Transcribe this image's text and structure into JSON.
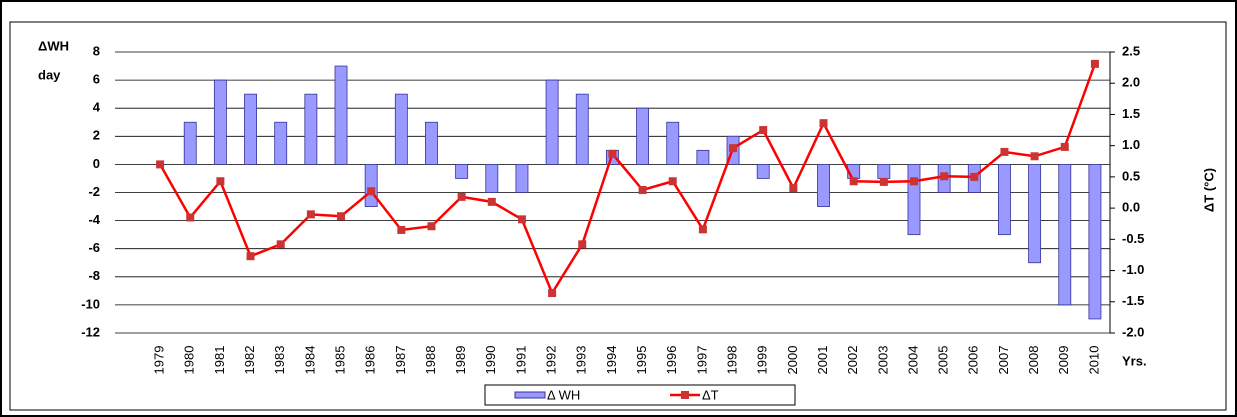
{
  "chart_data": {
    "type": "bar-line",
    "y_label_top": "ΔWH",
    "y_label_unit": "day",
    "y2_label": "ΔT (°C)",
    "x_label": "Yrs.",
    "categories": [
      "1979",
      "1980",
      "1981",
      "1982",
      "1983",
      "1984",
      "1985",
      "1986",
      "1987",
      "1988",
      "1989",
      "1990",
      "1991",
      "1992",
      "1993",
      "1994",
      "1995",
      "1996",
      "1997",
      "1998",
      "1999",
      "2000",
      "2001",
      "2002",
      "2003",
      "2004",
      "2005",
      "2006",
      "2007",
      "2008",
      "2009",
      "2010"
    ],
    "series": [
      {
        "name": "Δ WH",
        "type": "bar",
        "color": "#9999ff",
        "values": [
          0,
          3,
          6,
          5,
          3,
          5,
          7,
          -3,
          5,
          3,
          -1,
          -2,
          -2,
          6,
          5,
          1,
          4,
          3,
          1,
          2,
          -1,
          0,
          -3,
          -1,
          -1,
          -5,
          -2,
          -2,
          -5,
          -7,
          -10,
          -11
        ]
      },
      {
        "name": "ΔT",
        "type": "line",
        "axis": "y2",
        "color": "#ff0000",
        "values": [
          0.7,
          -0.15,
          0.43,
          -0.77,
          -0.58,
          -0.1,
          -0.13,
          0.27,
          -0.35,
          -0.29,
          0.18,
          0.1,
          -0.18,
          -1.36,
          -0.58,
          0.87,
          0.29,
          0.43,
          -0.34,
          0.96,
          1.25,
          0.32,
          1.36,
          0.43,
          0.42,
          0.43,
          0.51,
          0.5,
          0.9,
          0.83,
          0.98,
          2.31
        ]
      }
    ],
    "ylim": [
      -12,
      8
    ],
    "yticks": [
      -12,
      -10,
      -8,
      -6,
      -4,
      -2,
      0,
      2,
      4,
      6,
      8
    ],
    "y2lim": [
      -2,
      2.5
    ],
    "y2ticks": [
      {
        "value": -2,
        "label": "-2.0"
      },
      -1.5,
      {
        "value": -1,
        "label": "-1.0"
      },
      -0.5,
      {
        "value": 0,
        "label": "0.0"
      },
      0.5,
      {
        "value": 1,
        "label": "1.0"
      },
      1.5,
      {
        "value": 2,
        "label": "2.0"
      },
      2.5
    ],
    "grid": true,
    "legend": "bottom"
  }
}
